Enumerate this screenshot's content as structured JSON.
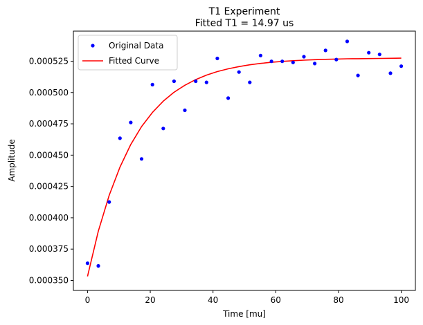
{
  "chart_data": {
    "type": "scatter",
    "title": "T1 Experiment",
    "subtitle": "Fitted T1 = 14.97 us",
    "xlabel": "Time [mu]",
    "ylabel": "Amplitude",
    "xlim": [
      -4.5,
      104.5
    ],
    "ylim": [
      0.000342,
      0.000549
    ],
    "xticks": [
      0,
      20,
      40,
      60,
      80,
      100
    ],
    "xtick_labels": [
      "0",
      "20",
      "40",
      "60",
      "80",
      "100"
    ],
    "yticks": [
      0.00035,
      0.000375,
      0.0004,
      0.000425,
      0.00045,
      0.000475,
      0.0005,
      0.000525
    ],
    "ytick_labels": [
      "0.000350",
      "0.000375",
      "0.000400",
      "0.000425",
      "0.000450",
      "0.000475",
      "0.000500",
      "0.000525"
    ],
    "grid": false,
    "legend_position": "top-left",
    "series": [
      {
        "name": "Original Data",
        "kind": "scatter",
        "color": "#0000ff",
        "x": [
          0,
          3.45,
          6.9,
          10.34,
          13.79,
          17.24,
          20.69,
          24.14,
          27.59,
          31.03,
          34.48,
          37.93,
          41.38,
          44.83,
          48.28,
          51.72,
          55.17,
          58.62,
          62.07,
          65.52,
          68.97,
          72.41,
          75.86,
          79.31,
          82.76,
          86.21,
          89.66,
          93.1,
          96.55,
          100
        ],
        "y": [
          0.0003637,
          0.0003616,
          0.0004126,
          0.0004635,
          0.0004761,
          0.000447,
          0.0005063,
          0.0004713,
          0.000509,
          0.0004858,
          0.000509,
          0.0005081,
          0.0005272,
          0.0004955,
          0.0005163,
          0.0005081,
          0.0005295,
          0.0005249,
          0.0005249,
          0.000524,
          0.0005286,
          0.0005231,
          0.0005336,
          0.0005263,
          0.0005408,
          0.0005136,
          0.0005318,
          0.0005304,
          0.0005154,
          0.000521
        ]
      },
      {
        "name": "Fitted Curve",
        "kind": "line",
        "color": "#ff0000",
        "x": [
          0,
          3.45,
          6.9,
          10.34,
          13.79,
          17.24,
          20.69,
          24.14,
          27.59,
          31.03,
          34.48,
          37.93,
          41.38,
          44.83,
          48.28,
          51.72,
          55.17,
          58.62,
          62.07,
          65.52,
          68.97,
          72.41,
          75.86,
          79.31,
          82.76,
          86.21,
          89.66,
          93.1,
          96.55,
          100
        ],
        "y": [
          0.0003532,
          0.0003893,
          0.0004179,
          0.0004405,
          0.0004585,
          0.0004728,
          0.0004841,
          0.0004931,
          0.0005002,
          0.0005058,
          0.0005103,
          0.0005139,
          0.0005167,
          0.0005189,
          0.0005207,
          0.0005221,
          0.0005232,
          0.0005241,
          0.0005248,
          0.0005254,
          0.0005258,
          0.0005262,
          0.0005265,
          0.0005267,
          0.0005269,
          0.000527,
          0.0005271,
          0.0005272,
          0.0005273,
          0.0005274
        ]
      }
    ]
  }
}
